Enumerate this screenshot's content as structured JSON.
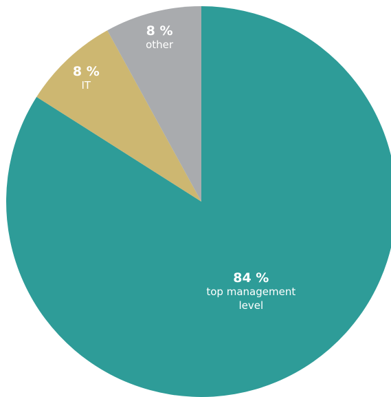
{
  "chart_data": {
    "type": "pie",
    "start_angle_deg": 0,
    "direction": "clockwise",
    "slices": [
      {
        "value": 84,
        "value_label": "84 %",
        "label_lines": [
          "top management",
          "level"
        ],
        "color": "#2e9c98"
      },
      {
        "value": 8,
        "value_label": "8 %",
        "label_lines": [
          "IT"
        ],
        "color": "#cdb771"
      },
      {
        "value": 8,
        "value_label": "8 %",
        "label_lines": [
          "other"
        ],
        "color": "#a9abae"
      }
    ]
  }
}
